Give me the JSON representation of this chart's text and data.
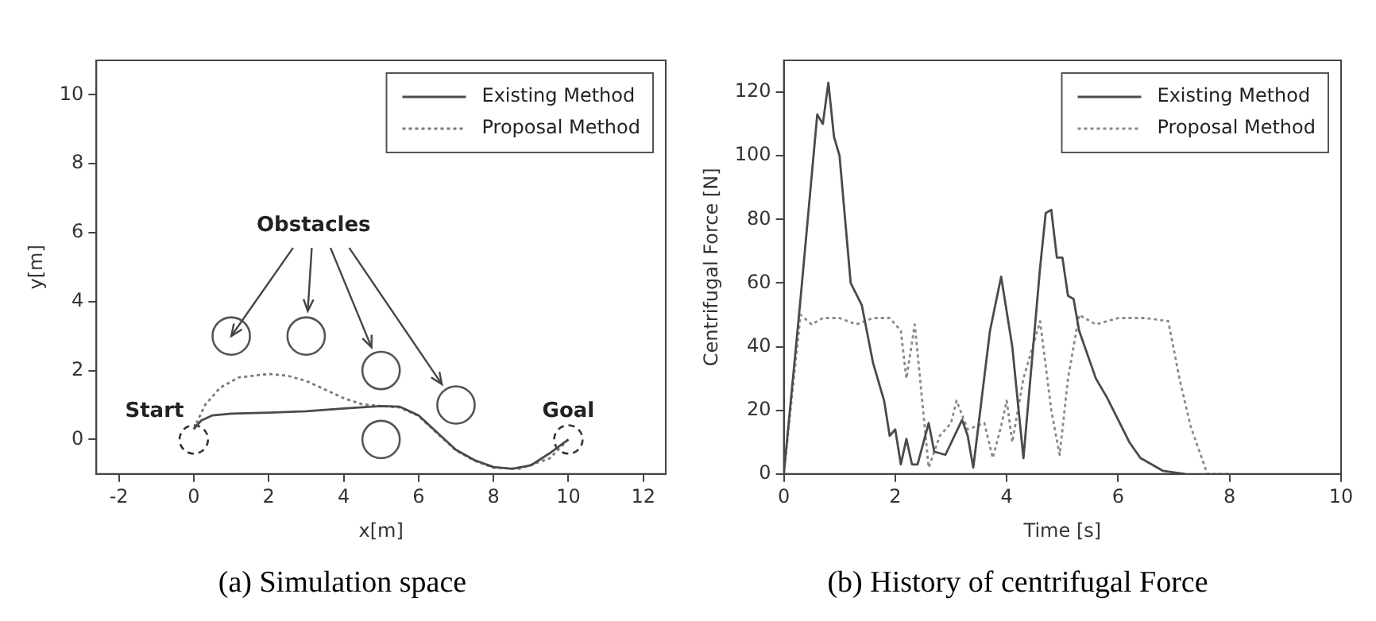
{
  "chart_data": [
    {
      "type": "line",
      "title": "(a) Simulation space",
      "xlabel": "x[m]",
      "ylabel": "y[m]",
      "xlim": [
        -2.6,
        12.6
      ],
      "ylim": [
        -1,
        11
      ],
      "xticks": [
        -2,
        0,
        2,
        4,
        6,
        8,
        10,
        12
      ],
      "yticks": [
        0,
        2,
        4,
        6,
        8,
        10
      ],
      "legend": "top right",
      "marker": "none",
      "annotations": [
        {
          "text": "Obstacles",
          "x": 1,
          "y": 3
        },
        "Start",
        "Goal"
      ],
      "series": [
        {
          "name": "Existing Method",
          "color": "#4a4a4a",
          "line_style": "solid",
          "x": [
            0,
            0.2,
            0.5,
            1,
            2,
            3,
            4,
            5,
            5.5,
            6,
            6.5,
            7,
            7.5,
            8,
            8.5,
            9,
            9.5,
            10
          ],
          "values": [
            0.3,
            0.55,
            0.7,
            0.75,
            0.78,
            0.82,
            0.9,
            0.97,
            0.95,
            0.7,
            0.2,
            -0.3,
            -0.6,
            -0.8,
            -0.85,
            -0.75,
            -0.4,
            0
          ]
        },
        {
          "name": "Proposal Method",
          "color": "#7a7a7a",
          "line_style": "dotted",
          "x": [
            0,
            0.3,
            0.7,
            1.2,
            2,
            2.5,
            3,
            3.5,
            4,
            4.5,
            5,
            5.5,
            6,
            6.5,
            7,
            7.5,
            8,
            8.7,
            9.5,
            10
          ],
          "values": [
            0.3,
            1.0,
            1.5,
            1.8,
            1.9,
            1.85,
            1.7,
            1.45,
            1.2,
            1.02,
            0.97,
            0.93,
            0.68,
            0.18,
            -0.32,
            -0.62,
            -0.82,
            -0.85,
            -0.55,
            0
          ]
        },
        {
          "type": "scatter",
          "color": "#555555",
          "marker": "circle",
          "line_style": "solid",
          "x": [
            1,
            3,
            5,
            7,
            5
          ],
          "values": [
            3,
            3,
            2,
            1,
            0
          ]
        },
        {
          "type": "scatter",
          "color": "#333333",
          "marker": "circle",
          "line_style": "dashed",
          "x": [
            0,
            10
          ],
          "values": [
            0,
            0
          ]
        }
      ]
    },
    {
      "type": "line",
      "title": "(b) History of centrifugal Force",
      "xlabel": "Time [s]",
      "ylabel": "Centrifugal Force [N]",
      "xlim": [
        0,
        10
      ],
      "ylim": [
        0,
        130
      ],
      "xticks": [
        0,
        2,
        4,
        6,
        8,
        10
      ],
      "yticks": [
        0,
        20,
        40,
        60,
        80,
        100,
        120
      ],
      "legend": "top right",
      "marker": "none",
      "series": [
        {
          "name": "Existing Method",
          "color": "#4a4a4a",
          "line_style": "solid",
          "x": [
            0,
            0.3,
            0.6,
            0.7,
            0.8,
            0.9,
            1.0,
            1.2,
            1.4,
            1.6,
            1.8,
            1.9,
            2.0,
            2.1,
            2.2,
            2.3,
            2.4,
            2.6,
            2.7,
            2.9,
            3.2,
            3.3,
            3.4,
            3.7,
            3.9,
            4.1,
            4.3,
            4.6,
            4.7,
            4.8,
            4.9,
            5.0,
            5.1,
            5.2,
            5.3,
            5.6,
            5.8,
            6.0,
            6.2,
            6.4,
            6.6,
            6.8,
            7.2
          ],
          "values": [
            0,
            55,
            113,
            110,
            123,
            106,
            100,
            60,
            53,
            35,
            23,
            12,
            14,
            3,
            11,
            3,
            3,
            16,
            7,
            6,
            17,
            12,
            2,
            45,
            62,
            40,
            5,
            65,
            82,
            83,
            68,
            68,
            56,
            55,
            45,
            30,
            24,
            17,
            10,
            5,
            3,
            1,
            0
          ]
        },
        {
          "name": "Proposal Method",
          "color": "#8a8a8a",
          "line_style": "dotted",
          "x": [
            0,
            0.3,
            0.5,
            0.7,
            1.0,
            1.3,
            1.6,
            1.9,
            2.1,
            2.2,
            2.35,
            2.5,
            2.6,
            2.8,
            3.0,
            3.1,
            3.3,
            3.6,
            3.75,
            3.9,
            4.0,
            4.1,
            4.3,
            4.6,
            4.8,
            4.95,
            5.1,
            5.3,
            5.6,
            6.0,
            6.5,
            6.9,
            7.1,
            7.3,
            7.5,
            7.6,
            8.0
          ],
          "values": [
            0,
            50,
            47,
            49,
            49,
            47,
            49,
            49,
            45,
            30,
            47,
            20,
            2,
            12,
            16,
            23,
            14,
            16,
            5,
            15,
            23,
            10,
            30,
            48,
            20,
            6,
            30,
            50,
            47,
            49,
            49,
            48,
            30,
            15,
            5,
            0,
            0
          ]
        }
      ]
    }
  ]
}
